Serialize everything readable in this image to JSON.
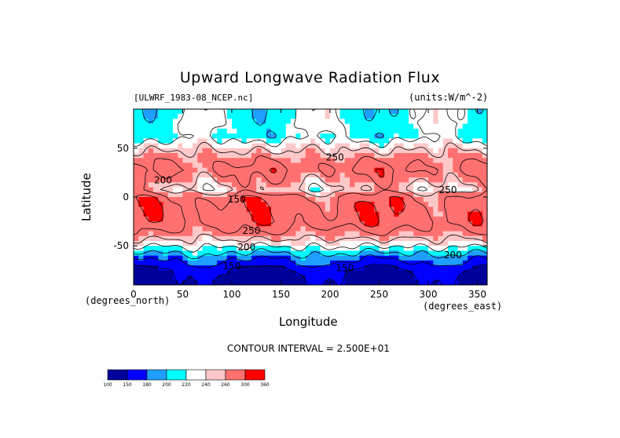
{
  "chart_data": {
    "type": "heatmap",
    "title": "Upward Longwave Radiation Flux",
    "file_label": "[ULWRF_1983-08_NCEP.nc]",
    "units_label": "(units:W/m^-2)",
    "xlabel": "Longitude",
    "ylabel": "Latitude",
    "x_units": "(degrees_east)",
    "y_units": "(degrees_north)",
    "xlim": [
      0,
      360
    ],
    "ylim": [
      -90,
      90
    ],
    "x_ticks": [
      0,
      50,
      100,
      150,
      200,
      250,
      300,
      350
    ],
    "y_ticks": [
      50,
      0,
      -50
    ],
    "contour_interval_text": "CONTOUR INTERVAL = 2.500E+01",
    "contour_labels": [
      {
        "text": "250",
        "lon": 205,
        "lat": 40
      },
      {
        "text": "250",
        "lon": 120,
        "lat": -35
      },
      {
        "text": "200",
        "lon": 115,
        "lat": -52
      },
      {
        "text": "150",
        "lon": 100,
        "lat": -71
      },
      {
        "text": "150",
        "lon": 215,
        "lat": -73
      },
      {
        "text": "200",
        "lon": 325,
        "lat": -60
      },
      {
        "text": "250",
        "lon": 320,
        "lat": 7
      },
      {
        "text": "150",
        "lon": 105,
        "lat": -3
      },
      {
        "text": "200",
        "lon": 30,
        "lat": 17
      }
    ],
    "colorbar": {
      "levels": [
        100,
        150,
        180,
        200,
        220,
        240,
        260,
        300,
        360
      ],
      "colors": [
        "#00009a",
        "#0000ff",
        "#1e9fff",
        "#00ffff",
        "#ffffff",
        "#ffc8c8",
        "#ff7070",
        "#ff0000"
      ]
    },
    "lat_profile": [
      {
        "lat": -90,
        "value": 135
      },
      {
        "lat": -75,
        "value": 150
      },
      {
        "lat": -62,
        "value": 185
      },
      {
        "lat": -55,
        "value": 210
      },
      {
        "lat": -48,
        "value": 235
      },
      {
        "lat": -38,
        "value": 265
      },
      {
        "lat": -25,
        "value": 290
      },
      {
        "lat": -10,
        "value": 290
      },
      {
        "lat": 0,
        "value": 280
      },
      {
        "lat": 8,
        "value": 245
      },
      {
        "lat": 15,
        "value": 260
      },
      {
        "lat": 28,
        "value": 280
      },
      {
        "lat": 40,
        "value": 265
      },
      {
        "lat": 50,
        "value": 245
      },
      {
        "lat": 62,
        "value": 215
      },
      {
        "lat": 75,
        "value": 220
      },
      {
        "lat": 90,
        "value": 215
      }
    ]
  }
}
